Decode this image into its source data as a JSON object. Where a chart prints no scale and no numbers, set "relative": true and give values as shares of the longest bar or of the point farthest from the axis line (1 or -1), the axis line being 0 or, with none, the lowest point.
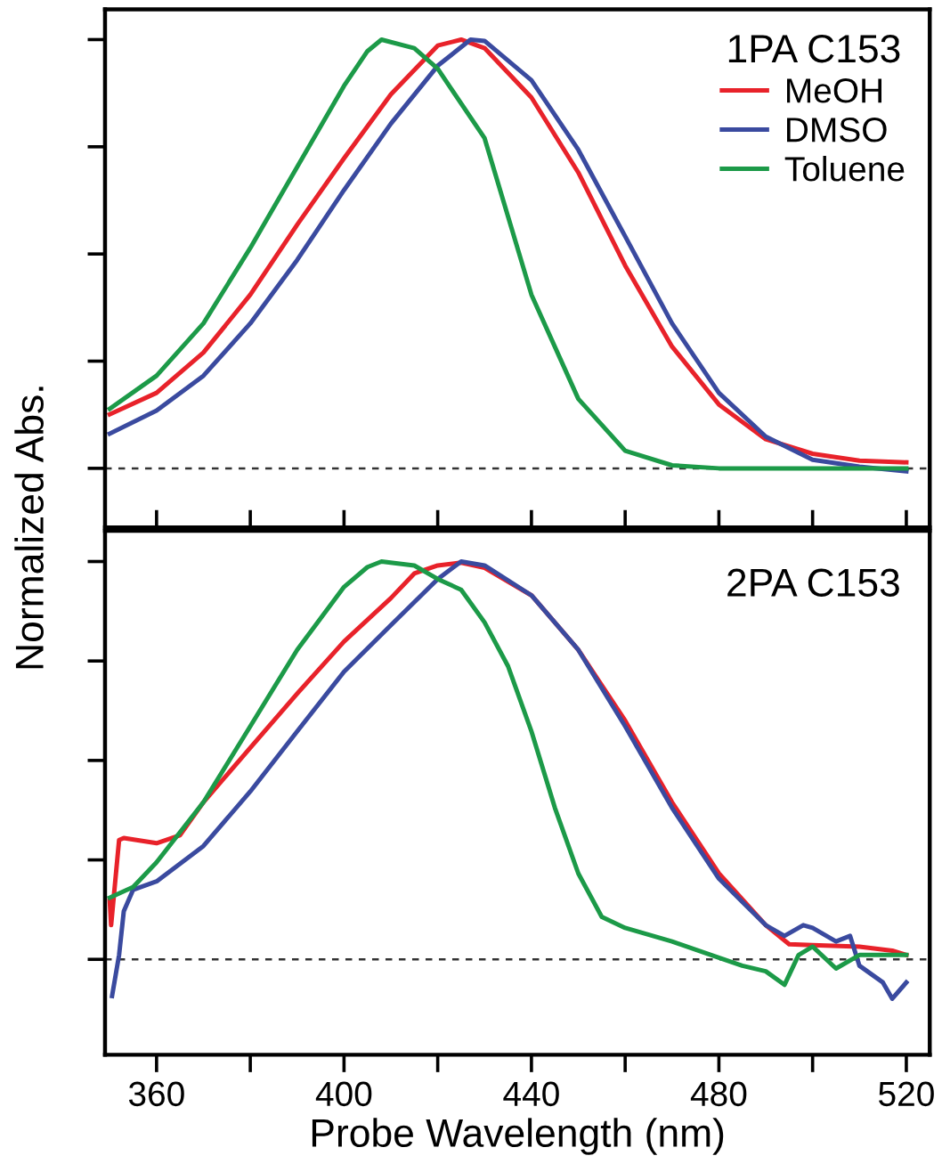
{
  "chart_data": [
    {
      "type": "line",
      "relative": true,
      "ylabel": "Normalized Abs.",
      "legend_title": "1PA C153",
      "legend": "top right",
      "tick_labels": false,
      "xlim": [
        349,
        525
      ],
      "xticks": [
        {
          "value": 360,
          "label": null
        },
        {
          "value": 400,
          "label": null
        },
        {
          "value": 440,
          "label": null
        },
        {
          "value": 480,
          "label": null
        },
        {
          "value": 520,
          "label": null
        }
      ],
      "ref_lines": [
        {
          "axis": "y",
          "value": 0,
          "label": null,
          "color": "#333333",
          "line_style": "dashed"
        }
      ],
      "series": [
        {
          "name": "MeOH",
          "color": "#e8222a",
          "x": [
            350,
            360,
            370,
            380,
            390,
            400,
            410,
            420,
            425,
            430,
            440,
            450,
            460,
            470,
            480,
            490,
            500,
            510,
            520
          ],
          "values": [
            0.126,
            0.176,
            0.27,
            0.405,
            0.568,
            0.723,
            0.872,
            0.986,
            1.0,
            0.98,
            0.865,
            0.69,
            0.473,
            0.284,
            0.149,
            0.068,
            0.034,
            0.018,
            0.014
          ]
        },
        {
          "name": "DMSO",
          "color": "#3a4a9f",
          "x": [
            350,
            360,
            370,
            380,
            390,
            400,
            410,
            420,
            427,
            430,
            440,
            450,
            460,
            470,
            480,
            490,
            500,
            510,
            520
          ],
          "values": [
            0.081,
            0.135,
            0.216,
            0.338,
            0.486,
            0.649,
            0.804,
            0.939,
            1.0,
            0.997,
            0.905,
            0.743,
            0.541,
            0.338,
            0.176,
            0.074,
            0.02,
            0.004,
            -0.007
          ]
        },
        {
          "name": "Toluene",
          "color": "#1c9a48",
          "x": [
            350,
            360,
            370,
            380,
            390,
            400,
            405,
            408,
            415,
            420,
            430,
            440,
            450,
            460,
            470,
            480,
            520
          ],
          "values": [
            0.139,
            0.216,
            0.338,
            0.514,
            0.703,
            0.892,
            0.973,
            1.0,
            0.98,
            0.932,
            0.77,
            0.405,
            0.162,
            0.041,
            0.007,
            0.0,
            0.0
          ]
        }
      ]
    },
    {
      "type": "line",
      "relative": true,
      "xlabel": "Probe Wavelength (nm)",
      "annotations": [
        "2PA C153"
      ],
      "tick_labels": "x",
      "xlim": [
        349,
        525
      ],
      "xticks": [
        360,
        400,
        440,
        480,
        520
      ],
      "ref_lines": [
        {
          "axis": "y",
          "value": 0,
          "label": null,
          "color": "#333333",
          "line_style": "dashed"
        }
      ],
      "series": [
        {
          "color": "#e8222a",
          "x": [
            350,
            350.3,
            352,
            353,
            360,
            365,
            370,
            380,
            390,
            400,
            410,
            415,
            420,
            425,
            430,
            440,
            450,
            460,
            470,
            480,
            490,
            495,
            500,
            510,
            517,
            520
          ],
          "values": [
            0.148,
            0.086,
            0.3,
            0.305,
            0.292,
            0.312,
            0.395,
            0.532,
            0.668,
            0.799,
            0.908,
            0.97,
            0.99,
            0.997,
            0.984,
            0.915,
            0.778,
            0.6,
            0.395,
            0.216,
            0.086,
            0.038,
            0.036,
            0.032,
            0.022,
            0.011
          ]
        },
        {
          "color": "#3a4a9f",
          "x": [
            350.5,
            352,
            353,
            355,
            360,
            370,
            380,
            390,
            400,
            410,
            420,
            425,
            430,
            440,
            450,
            460,
            470,
            480,
            490,
            494,
            498,
            500,
            505,
            508,
            510,
            515,
            517,
            520
          ],
          "values": [
            -0.092,
            0.011,
            0.121,
            0.175,
            0.196,
            0.285,
            0.422,
            0.573,
            0.723,
            0.84,
            0.956,
            1.0,
            0.99,
            0.915,
            0.778,
            0.586,
            0.381,
            0.203,
            0.086,
            0.059,
            0.086,
            0.079,
            0.045,
            0.059,
            -0.016,
            -0.058,
            -0.099,
            -0.058
          ]
        },
        {
          "color": "#1c9a48",
          "x": [
            350,
            355,
            360,
            370,
            380,
            390,
            400,
            405,
            408,
            415,
            420,
            425,
            430,
            435,
            440,
            445,
            450,
            455,
            460,
            470,
            480,
            485,
            490,
            494,
            497,
            500,
            505,
            510,
            515,
            520
          ],
          "values": [
            0.155,
            0.182,
            0.244,
            0.395,
            0.586,
            0.778,
            0.936,
            0.986,
            1.0,
            0.99,
            0.956,
            0.929,
            0.847,
            0.737,
            0.573,
            0.381,
            0.216,
            0.107,
            0.079,
            0.045,
            0.004,
            -0.016,
            -0.03,
            -0.064,
            0.011,
            0.032,
            -0.023,
            0.011,
            0.011,
            0.011
          ]
        }
      ]
    }
  ]
}
